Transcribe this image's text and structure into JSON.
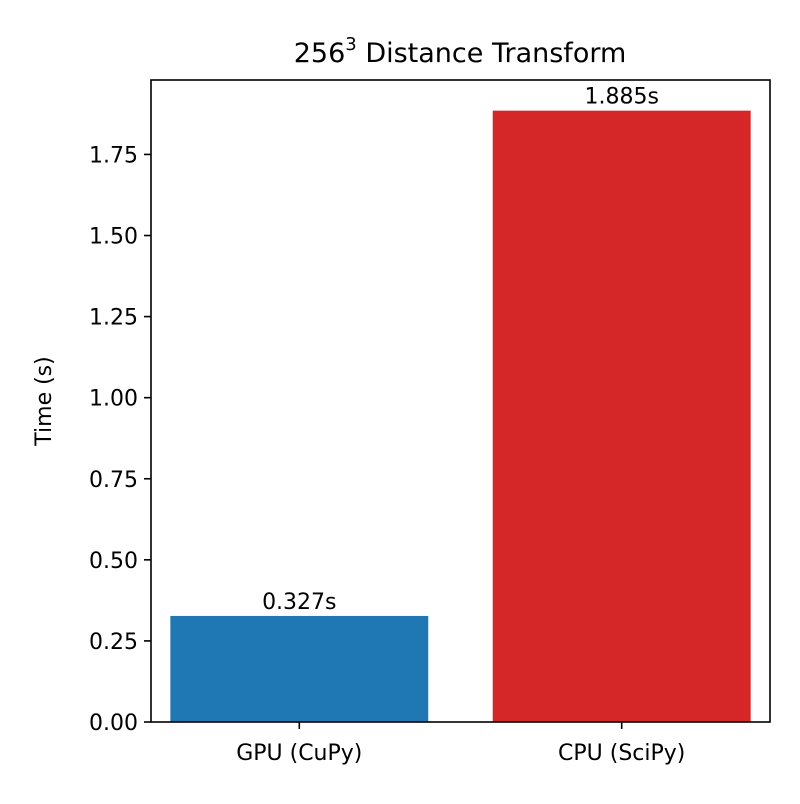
{
  "chart_data": {
    "type": "bar",
    "title": {
      "base": "256",
      "superscript": "3",
      "rest": " Distance Transform"
    },
    "xlabel": "",
    "ylabel": "Time (s)",
    "categories": [
      "GPU (CuPy)",
      "CPU (SciPy)"
    ],
    "values": [
      0.327,
      1.885
    ],
    "value_labels": [
      "0.327s",
      "1.885s"
    ],
    "colors": [
      "#1f77b4",
      "#d62728"
    ],
    "ylim": [
      0,
      1.885
    ],
    "yticks": [
      0.0,
      0.25,
      0.5,
      0.75,
      1.0,
      1.25,
      1.5,
      1.75
    ],
    "ytick_labels": [
      "0.00",
      "0.25",
      "0.50",
      "0.75",
      "1.00",
      "1.25",
      "1.50",
      "1.75"
    ],
    "grid": false,
    "legend": "none"
  }
}
